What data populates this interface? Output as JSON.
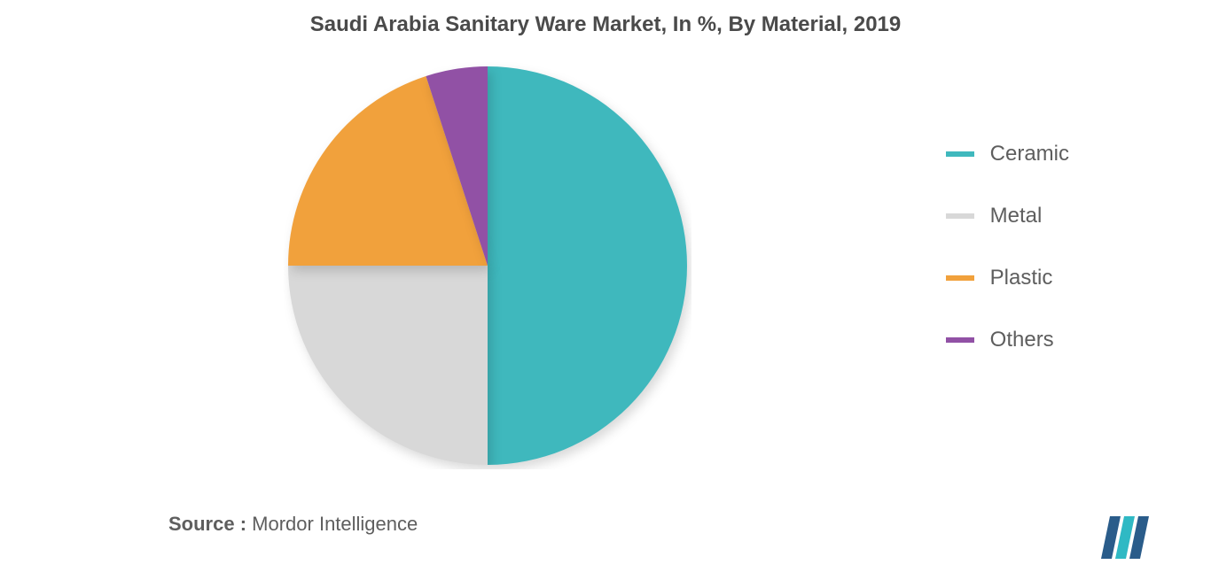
{
  "chart": {
    "type": "pie",
    "title": "Saudi Arabia Sanitary Ware Market, In %, By Material, 2019",
    "title_fontsize": 24,
    "title_color": "#4a4a4a",
    "background_color": "#ffffff",
    "pie_radius": 225,
    "slices": [
      {
        "label": "Ceramic",
        "value": 50,
        "color": "#3fb8bd"
      },
      {
        "label": "Metal",
        "value": 25,
        "color": "#d8d8d8"
      },
      {
        "label": "Plastic",
        "value": 20,
        "color": "#f1a13c"
      },
      {
        "label": "Others",
        "value": 5,
        "color": "#9151a5"
      }
    ],
    "legend": {
      "position": "right",
      "fontsize": 24,
      "label_color": "#5e5e5e",
      "marker_width": 32,
      "marker_height": 6,
      "item_spacing": 42
    }
  },
  "source": {
    "label": "Source :",
    "text": "Mordor Intelligence",
    "fontsize": 22,
    "color": "#5e5e5e"
  },
  "logo": {
    "bar_colors": [
      "#2a5c8a",
      "#2fb9c4",
      "#2a5c8a"
    ],
    "text": "MI"
  }
}
